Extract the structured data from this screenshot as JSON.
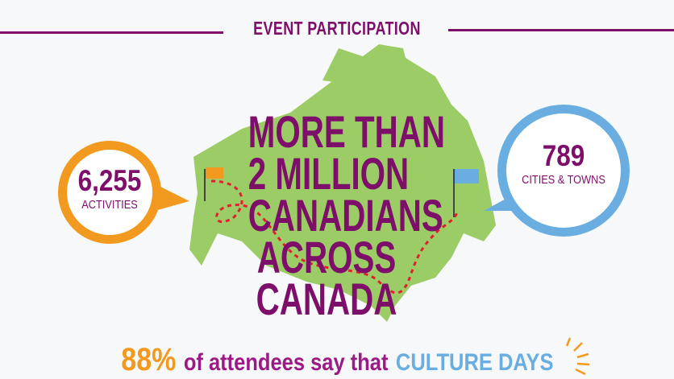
{
  "header": {
    "title": "EVENT PARTICIPATION"
  },
  "activities": {
    "value": "6,255",
    "label": "ACTIVITIES"
  },
  "cities": {
    "value": "789",
    "label": "CITIES & TOWNS"
  },
  "headline": [
    "MORE THAN",
    "2 MILLION",
    "CANADIANS",
    "ACROSS",
    "CANADA"
  ],
  "footer": {
    "stat": "88%",
    "text": "of attendees say that",
    "brand": "CULTURE DAYS"
  },
  "colors": {
    "purple": "#7d0f6a",
    "orange": "#f29a1f",
    "blue": "#6aade0",
    "green": "#9ccc65",
    "route": "#e0202e",
    "background": "#f7f8fa"
  },
  "icons": [
    "map-of-canada",
    "flag-orange",
    "flag-blue",
    "sunburst"
  ]
}
